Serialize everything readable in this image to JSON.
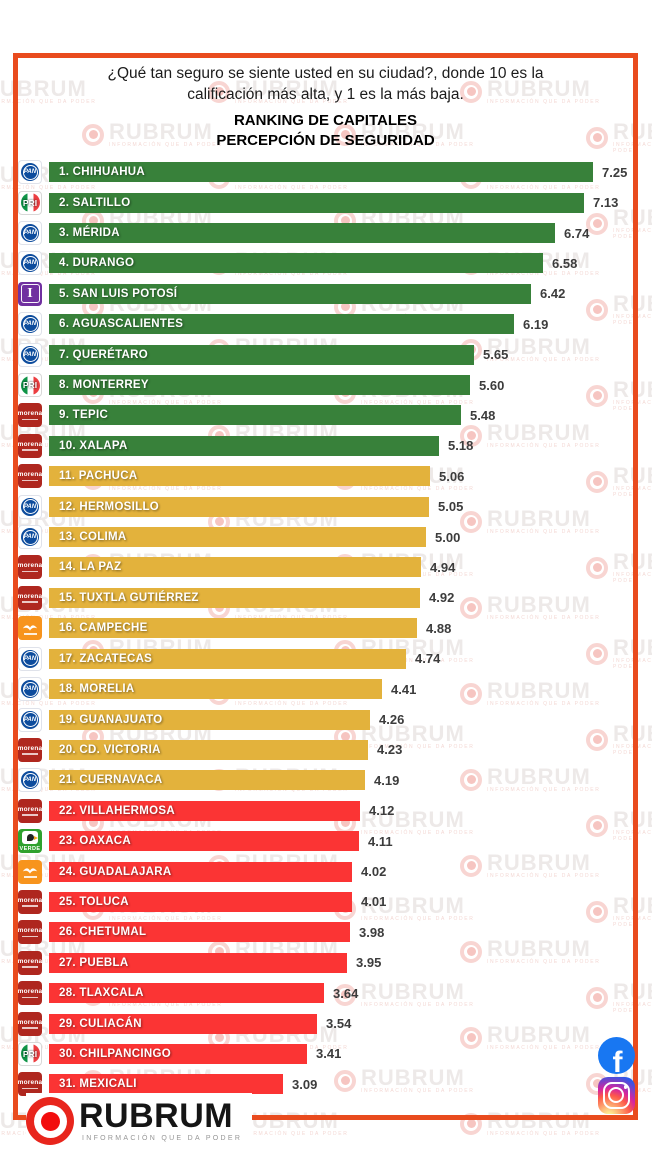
{
  "header": {
    "question_line1": "¿Qué tan seguro se siente usted en su ciudad?, donde 10 es la",
    "question_line2": "calificación más alta, y  1 es la más baja.",
    "title_line1": "RANKING DE CAPITALES",
    "title_line2": "PERCEPCIÓN DE SEGURIDAD"
  },
  "chart_data": {
    "type": "bar",
    "orientation": "horizontal",
    "title": "RANKING DE CAPITALES — PERCEPCIÓN DE SEGURIDAD",
    "scale_note": "10 = calificación más alta, 1 = la más baja",
    "xlim": [
      0,
      10
    ],
    "value_format": "0.00",
    "tier_colors": {
      "green": "#38813A",
      "yellow": "#E3B23C",
      "red": "#FB3434"
    },
    "rows": [
      {
        "rank": 1,
        "city": "CHIHUAHUA",
        "value": 7.25,
        "party": "PAN",
        "tier": "green"
      },
      {
        "rank": 2,
        "city": "SALTILLO",
        "value": 7.13,
        "party": "PRI",
        "tier": "green"
      },
      {
        "rank": 3,
        "city": "MÉRIDA",
        "value": 6.74,
        "party": "PAN",
        "tier": "green"
      },
      {
        "rank": 4,
        "city": "DURANGO",
        "value": 6.58,
        "party": "PAN",
        "tier": "green"
      },
      {
        "rank": 5,
        "city": "SAN LUIS POTOSÍ",
        "value": 6.42,
        "party": "IND",
        "tier": "green"
      },
      {
        "rank": 6,
        "city": "AGUASCALIENTES",
        "value": 6.19,
        "party": "PAN",
        "tier": "green"
      },
      {
        "rank": 7,
        "city": "QUERÉTARO",
        "value": 5.65,
        "party": "PAN",
        "tier": "green"
      },
      {
        "rank": 8,
        "city": "MONTERREY",
        "value": 5.6,
        "party": "PRI",
        "tier": "green"
      },
      {
        "rank": 9,
        "city": "TEPIC",
        "value": 5.48,
        "party": "MORENA",
        "tier": "green"
      },
      {
        "rank": 10,
        "city": "XALAPA",
        "value": 5.18,
        "party": "MORENA",
        "tier": "green"
      },
      {
        "rank": 11,
        "city": "PACHUCA",
        "value": 5.06,
        "party": "MORENA",
        "tier": "yellow"
      },
      {
        "rank": 12,
        "city": "HERMOSILLO",
        "value": 5.05,
        "party": "PAN",
        "tier": "yellow"
      },
      {
        "rank": 13,
        "city": "COLIMA",
        "value": 5.0,
        "party": "PAN",
        "tier": "yellow"
      },
      {
        "rank": 14,
        "city": "LA PAZ",
        "value": 4.94,
        "party": "MORENA",
        "tier": "yellow"
      },
      {
        "rank": 15,
        "city": "TUXTLA GUTIÉRREZ",
        "value": 4.92,
        "party": "MORENA",
        "tier": "yellow"
      },
      {
        "rank": 16,
        "city": "CAMPECHE",
        "value": 4.88,
        "party": "MC",
        "tier": "yellow"
      },
      {
        "rank": 17,
        "city": "ZACATECAS",
        "value": 4.74,
        "party": "PAN",
        "tier": "yellow"
      },
      {
        "rank": 18,
        "city": "MORELIA",
        "value": 4.41,
        "party": "PAN",
        "tier": "yellow"
      },
      {
        "rank": 19,
        "city": "GUANAJUATO",
        "value": 4.26,
        "party": "PAN",
        "tier": "yellow"
      },
      {
        "rank": 20,
        "city": "CD. VICTORIA",
        "value": 4.23,
        "party": "MORENA",
        "tier": "yellow"
      },
      {
        "rank": 21,
        "city": "CUERNAVACA",
        "value": 4.19,
        "party": "PAN",
        "tier": "yellow"
      },
      {
        "rank": 22,
        "city": "VILLAHERMOSA",
        "value": 4.12,
        "party": "MORENA",
        "tier": "red"
      },
      {
        "rank": 23,
        "city": "OAXACA",
        "value": 4.11,
        "party": "VERDE",
        "tier": "red"
      },
      {
        "rank": 24,
        "city": "GUADALAJARA",
        "value": 4.02,
        "party": "MC",
        "tier": "red"
      },
      {
        "rank": 25,
        "city": "TOLUCA",
        "value": 4.01,
        "party": "MORENA",
        "tier": "red"
      },
      {
        "rank": 26,
        "city": "CHETUMAL",
        "value": 3.98,
        "party": "MORENA",
        "tier": "red"
      },
      {
        "rank": 27,
        "city": "PUEBLA",
        "value": 3.95,
        "party": "MORENA",
        "tier": "red"
      },
      {
        "rank": 28,
        "city": "TLAXCALA",
        "value": 3.64,
        "party": "MORENA",
        "tier": "red"
      },
      {
        "rank": 29,
        "city": "CULIACÁN",
        "value": 3.54,
        "party": "MORENA",
        "tier": "red"
      },
      {
        "rank": 30,
        "city": "CHILPANCINGO",
        "value": 3.41,
        "party": "PRI",
        "tier": "red"
      },
      {
        "rank": 31,
        "city": "MEXICALI",
        "value": 3.09,
        "party": "MORENA",
        "tier": "red"
      }
    ]
  },
  "parties": {
    "PAN": {
      "label": "PAN",
      "color": "#0D4C9D"
    },
    "PRI": {
      "label": "PRI",
      "green": "#0F9447",
      "red": "#EC3E41"
    },
    "MORENA": {
      "label": "morena",
      "color": "#AF271F"
    },
    "IND": {
      "label": "I",
      "color": "#7030A0"
    },
    "MC": {
      "label": "",
      "color": "#F7941D"
    },
    "VERDE": {
      "label": "VERDE",
      "color": "#2FA12E"
    }
  },
  "watermark": {
    "brand": "RUBRUM",
    "tagline": "INFORMACIÓN QUE DA PODER"
  },
  "footer": {
    "brand": "RUBRUM",
    "tagline": "INFORMACIÓN QUE DA PODER"
  },
  "social": {
    "facebook_glyph": "f"
  },
  "frame_color": "#E94B1E"
}
